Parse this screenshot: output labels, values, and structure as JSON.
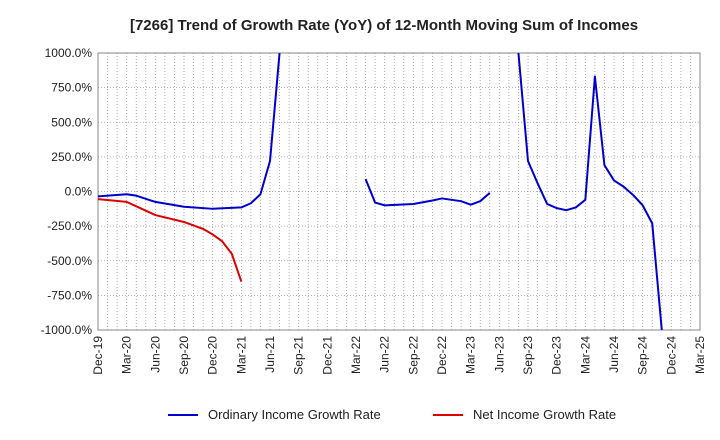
{
  "chart_data": {
    "type": "line",
    "title": "[7266]  Trend of Growth Rate (YoY) of 12-Month Moving Sum of Incomes",
    "xlabel": "",
    "ylabel": "",
    "ylim": [
      -1000,
      1000
    ],
    "y_ticks": [
      1000,
      750,
      500,
      250,
      0,
      -250,
      -500,
      -750,
      -1000
    ],
    "y_tick_labels": [
      "1000.0%",
      "750.0%",
      "500.0%",
      "250.0%",
      "0.0%",
      "-250.0%",
      "-500.0%",
      "-750.0%",
      "-1000.0%"
    ],
    "x_range": [
      "2019-12",
      "2025-03"
    ],
    "x_tick_labels": [
      "Dec-19",
      "Mar-20",
      "Jun-20",
      "Sep-20",
      "Dec-20",
      "Mar-21",
      "Jun-21",
      "Sep-21",
      "Dec-21",
      "Mar-22",
      "Jun-22",
      "Sep-22",
      "Dec-22",
      "Mar-23",
      "Jun-23",
      "Sep-23",
      "Dec-23",
      "Mar-24",
      "Jun-24",
      "Sep-24",
      "Dec-24",
      "Mar-25"
    ],
    "grid": true,
    "legend_position": "bottom",
    "series": [
      {
        "name": "Ordinary Income Growth Rate",
        "color": "#0000cc",
        "points": [
          [
            "2019-12",
            -35
          ],
          [
            "2020-03",
            -20
          ],
          [
            "2020-04",
            -30
          ],
          [
            "2020-06",
            -75
          ],
          [
            "2020-09",
            -110
          ],
          [
            "2020-12",
            -125
          ],
          [
            "2021-03",
            -115
          ],
          [
            "2021-04",
            -85
          ],
          [
            "2021-05",
            -20
          ],
          [
            "2021-06",
            220
          ],
          [
            "2021-07",
            1000
          ],
          null,
          [
            "2022-04",
            90
          ],
          [
            "2022-05",
            -80
          ],
          [
            "2022-06",
            -100
          ],
          [
            "2022-09",
            -90
          ],
          [
            "2022-11",
            -65
          ],
          [
            "2022-12",
            -50
          ],
          [
            "2023-02",
            -70
          ],
          [
            "2023-03",
            -95
          ],
          [
            "2023-04",
            -70
          ],
          [
            "2023-05",
            -10
          ],
          null,
          [
            "2023-08",
            1000
          ],
          [
            "2023-09",
            220
          ],
          [
            "2023-10",
            60
          ],
          [
            "2023-11",
            -90
          ],
          [
            "2023-12",
            -120
          ],
          [
            "2024-01",
            -135
          ],
          [
            "2024-02",
            -115
          ],
          [
            "2024-03",
            -60
          ],
          [
            "2024-04",
            830
          ],
          [
            "2024-05",
            190
          ],
          [
            "2024-06",
            80
          ],
          [
            "2024-07",
            35
          ],
          [
            "2024-08",
            -25
          ],
          [
            "2024-09",
            -100
          ],
          [
            "2024-10",
            -230
          ],
          [
            "2024-11",
            -1000
          ]
        ]
      },
      {
        "name": "Net Income Growth Rate",
        "color": "#dd0000",
        "points": [
          [
            "2019-12",
            -55
          ],
          [
            "2020-03",
            -75
          ],
          [
            "2020-06",
            -170
          ],
          [
            "2020-09",
            -220
          ],
          [
            "2020-11",
            -270
          ],
          [
            "2020-12",
            -310
          ],
          [
            "2021-01",
            -360
          ],
          [
            "2021-02",
            -450
          ],
          [
            "2021-03",
            -650
          ]
        ]
      }
    ]
  }
}
